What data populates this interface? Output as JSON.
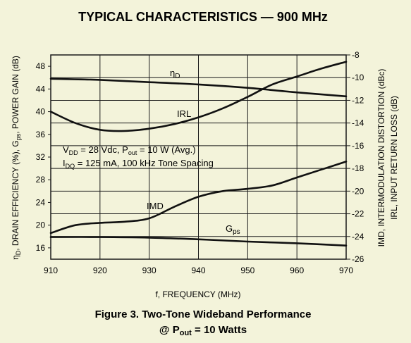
{
  "chart_data": {
    "type": "line",
    "title": "TYPICAL CHARACTERISTICS — 900 MHz",
    "caption": {
      "line1": "Figure 3. Two-Tone Wideband Performance",
      "line2_prefix": "@ P",
      "line2_sub": "out",
      "line2_suffix": " = 10 Watts"
    },
    "xlabel": "f, FREQUENCY (MHz)",
    "ylabel_left": {
      "eta": "η",
      "eta_sub": "D",
      "mid": ", DRAIN EFFICIENCY (%), G",
      "g_sub": "ps",
      "end": ", POWER GAIN (dB)"
    },
    "ylabel_right_1": "IMD, INTERMODULATION DISTORTION (dBc)",
    "ylabel_right_2": "IRL, INPUT RETURN LOSS (dB)",
    "xlim": [
      910,
      970
    ],
    "ylim_left": [
      14,
      50
    ],
    "ylim_right": [
      -26,
      -8
    ],
    "x_ticks": [
      910,
      920,
      930,
      940,
      950,
      960,
      970
    ],
    "y_left_ticks": [
      16,
      20,
      24,
      28,
      32,
      36,
      40,
      44,
      48
    ],
    "y_right_ticks": [
      -8,
      -10,
      -12,
      -14,
      -16,
      -18,
      -20,
      -22,
      -24,
      -26
    ],
    "grid": true,
    "annotations": {
      "etaD": {
        "label": "η",
        "sub": "D"
      },
      "irl": {
        "label": "IRL"
      },
      "imd": {
        "label": "IMD"
      },
      "gps": {
        "label": "G",
        "sub": "ps"
      },
      "cond1": {
        "a": "V",
        "a_sub": "DD",
        "b": " = 28 Vdc, P",
        "b_sub": "out",
        "c": " = 10 W (Avg.)"
      },
      "cond2": {
        "a": "I",
        "a_sub": "DQ",
        "b": " = 125 mA, 100 kHz Tone Spacing"
      }
    },
    "series": [
      {
        "id": "etaD",
        "axis": "left",
        "x": [
          910,
          920,
          930,
          940,
          950,
          960,
          970
        ],
        "y": [
          45.8,
          45.6,
          45.2,
          44.8,
          44.2,
          43.4,
          42.7
        ]
      },
      {
        "id": "irl",
        "axis": "right",
        "x": [
          910,
          915,
          920,
          925,
          930,
          935,
          940,
          945,
          950,
          955,
          960,
          965,
          970
        ],
        "y": [
          -13.0,
          -14.0,
          -14.6,
          -14.7,
          -14.5,
          -14.1,
          -13.5,
          -12.7,
          -11.7,
          -10.6,
          -9.9,
          -9.2,
          -8.6
        ]
      },
      {
        "id": "imd",
        "axis": "right",
        "x": [
          910,
          915,
          920,
          925,
          930,
          935,
          940,
          945,
          950,
          955,
          960,
          965,
          970
        ],
        "y": [
          -23.7,
          -23.0,
          -22.8,
          -22.7,
          -22.4,
          -21.4,
          -20.5,
          -20.0,
          -19.8,
          -19.5,
          -18.8,
          -18.1,
          -17.4
        ]
      },
      {
        "id": "gps",
        "axis": "left",
        "x": [
          910,
          920,
          930,
          940,
          950,
          960,
          970
        ],
        "y": [
          17.9,
          17.9,
          17.8,
          17.5,
          17.1,
          16.8,
          16.4
        ]
      }
    ]
  }
}
